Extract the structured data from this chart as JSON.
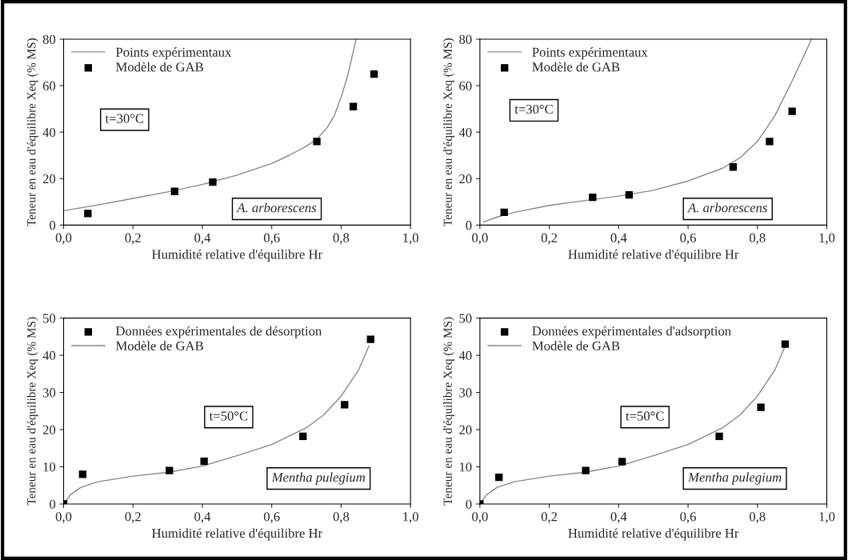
{
  "chart_data": [
    {
      "type": "scatter",
      "xlabel": "Humidité relative d'équilibre Hr",
      "ylabel": "Teneur en eau d'équilibre Xeq (% MS)",
      "xlim": [
        0,
        1
      ],
      "ylim": [
        0,
        80
      ],
      "xticks": [
        {
          "value": 0,
          "label": "0,0"
        },
        {
          "value": 0.2,
          "label": "0,2"
        },
        {
          "value": 0.4,
          "label": "0,4"
        },
        {
          "value": 0.6,
          "label": "0,6"
        },
        {
          "value": 0.8,
          "label": "0,8"
        },
        {
          "value": 1,
          "label": "1,0"
        }
      ],
      "yticks": [
        0,
        20,
        40,
        60,
        80
      ],
      "grid": false,
      "legend": "top left",
      "annotations": [
        "t=30°C",
        "A. arborescens"
      ],
      "series": [
        {
          "name": "Points expérimentaux",
          "type": "line",
          "color": "#888888",
          "marker": "none",
          "x": [
            0,
            0.1,
            0.2,
            0.3,
            0.4,
            0.5,
            0.6,
            0.65,
            0.7,
            0.73,
            0.76,
            0.78,
            0.8,
            0.82,
            0.84,
            0.843
          ],
          "values": [
            6.2,
            8.7,
            11.5,
            14.3,
            17.5,
            21.5,
            26.5,
            30,
            34,
            37,
            42,
            47,
            55,
            65,
            78,
            80
          ]
        },
        {
          "name": "Modèle de GAB",
          "color": "#000000",
          "marker": "square",
          "x": [
            0.07,
            0.32,
            0.43,
            0.73,
            0.835,
            0.895
          ],
          "values": [
            5,
            14.5,
            18.5,
            36,
            51,
            65
          ]
        }
      ]
    },
    {
      "type": "scatter",
      "xlabel": "Humidité relative d'équilibre Hr",
      "ylabel": "Teneur en eau d'équilibre Xeq (% MS)",
      "xlim": [
        0,
        1
      ],
      "ylim": [
        0,
        80
      ],
      "xticks": [
        {
          "value": 0,
          "label": "0,0"
        },
        {
          "value": 0.2,
          "label": "0,2"
        },
        {
          "value": 0.4,
          "label": "0,4"
        },
        {
          "value": 0.6,
          "label": "0,6"
        },
        {
          "value": 0.8,
          "label": "0,8"
        },
        {
          "value": 1,
          "label": "1,0"
        }
      ],
      "yticks": [
        0,
        20,
        40,
        60,
        80
      ],
      "grid": false,
      "legend": "top left",
      "annotations": [
        "t=30°C",
        "A. arborescens"
      ],
      "series": [
        {
          "name": "Points expérimentaux",
          "type": "line",
          "color": "#888888",
          "marker": "none",
          "x": [
            0.01,
            0.05,
            0.1,
            0.2,
            0.3,
            0.4,
            0.5,
            0.6,
            0.7,
            0.75,
            0.8,
            0.85,
            0.9,
            0.95,
            0.955
          ],
          "values": [
            1.3,
            3.5,
            5.5,
            8.5,
            10.5,
            12.5,
            15,
            19,
            24.5,
            29,
            36,
            47,
            62,
            78,
            80
          ]
        },
        {
          "name": "Modèle de GAB",
          "color": "#000000",
          "marker": "square",
          "x": [
            0.07,
            0.325,
            0.43,
            0.73,
            0.835,
            0.9
          ],
          "values": [
            5.5,
            12,
            13,
            25,
            36,
            49
          ]
        }
      ]
    },
    {
      "type": "scatter",
      "xlabel": "Humidité relative d'équilibre Hr",
      "ylabel": "Teneur en eau d'équilibre Xeq (% MS)",
      "xlim": [
        0,
        1
      ],
      "ylim": [
        0,
        50
      ],
      "xticks": [
        {
          "value": 0,
          "label": "0,0"
        },
        {
          "value": 0.2,
          "label": "0,2"
        },
        {
          "value": 0.4,
          "label": "0,4"
        },
        {
          "value": 0.6,
          "label": "0,6"
        },
        {
          "value": 0.8,
          "label": "0,8"
        },
        {
          "value": 1,
          "label": "1,0"
        }
      ],
      "yticks": [
        0,
        10,
        20,
        30,
        40,
        50
      ],
      "grid": false,
      "legend": "top left",
      "annotations": [
        "t=50°C",
        "Mentha pulegium"
      ],
      "series": [
        {
          "name": "Données expérimentales de désorption",
          "color": "#000000",
          "marker": "square",
          "x": [
            0,
            0.055,
            0.305,
            0.405,
            0.69,
            0.81,
            0.885
          ],
          "values": [
            0,
            8,
            9,
            11.5,
            18.2,
            26.7,
            44.3
          ]
        },
        {
          "name": "Modèle de GAB",
          "type": "line",
          "color": "#888888",
          "marker": "none",
          "x": [
            0,
            0.02,
            0.05,
            0.1,
            0.2,
            0.3,
            0.4,
            0.5,
            0.6,
            0.7,
            0.75,
            0.8,
            0.85,
            0.88
          ],
          "values": [
            0,
            2.5,
            4.5,
            6,
            7.5,
            8.5,
            10.2,
            13,
            16,
            20.5,
            24,
            29,
            36,
            42.5
          ]
        }
      ]
    },
    {
      "type": "scatter",
      "xlabel": "Humidité relative d'équilibre Hr",
      "ylabel": "Teneur en eau d'équilibre Xeq (% MS)",
      "xlim": [
        0,
        1
      ],
      "ylim": [
        0,
        50
      ],
      "xticks": [
        {
          "value": 0,
          "label": "0,0"
        },
        {
          "value": 0.2,
          "label": "0,2"
        },
        {
          "value": 0.4,
          "label": "0,4"
        },
        {
          "value": 0.6,
          "label": "0,6"
        },
        {
          "value": 0.8,
          "label": "0,8"
        },
        {
          "value": 1,
          "label": "1,0"
        }
      ],
      "yticks": [
        0,
        10,
        20,
        30,
        40,
        50
      ],
      "grid": false,
      "legend": "top left",
      "annotations": [
        "t=50°C",
        "Mentha pulegium"
      ],
      "series": [
        {
          "name": "Données expérimentales d'adsorption",
          "color": "#000000",
          "marker": "square",
          "x": [
            0,
            0.055,
            0.305,
            0.41,
            0.69,
            0.81,
            0.88
          ],
          "values": [
            0,
            7.2,
            9,
            11.4,
            18.2,
            26,
            43
          ]
        },
        {
          "name": "Modèle de GAB",
          "type": "line",
          "color": "#888888",
          "marker": "none",
          "x": [
            0,
            0.02,
            0.05,
            0.1,
            0.2,
            0.3,
            0.4,
            0.5,
            0.6,
            0.7,
            0.75,
            0.8,
            0.85,
            0.88
          ],
          "values": [
            0,
            2.5,
            4.5,
            6,
            7.5,
            8.5,
            10.2,
            13,
            16,
            20.5,
            24,
            29,
            36,
            42.5
          ]
        }
      ]
    }
  ]
}
